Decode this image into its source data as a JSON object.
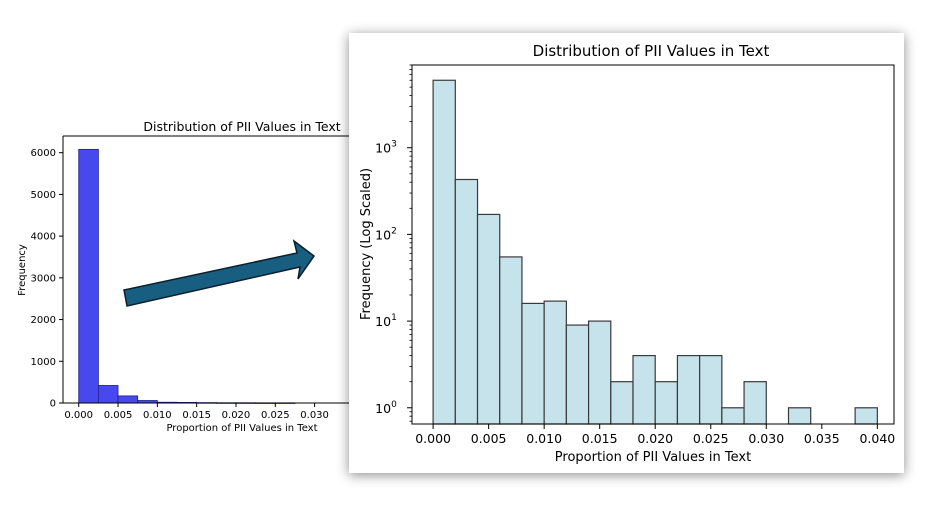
{
  "colors": {
    "left_bar_fill": "#4848f0",
    "left_bar_edge": "#1f1f8a",
    "right_bar_fill": "#c6e3ec",
    "right_bar_edge": "#3a3a3a",
    "arrow_fill": "#175e80",
    "arrow_edge": "#0b1f2c"
  },
  "arrow_icon": "arrow-right-icon",
  "chart_data": [
    {
      "type": "bar",
      "title": "Distribution of PII Values in Text",
      "xlabel": "Proportion of PII Values in Text",
      "ylabel": "Frequency",
      "y_scale": "linear",
      "ylim": [
        0,
        6400
      ],
      "xlim": [
        -0.002,
        0.0345
      ],
      "grid": false,
      "x_ticks": [
        0.0,
        0.005,
        0.01,
        0.015,
        0.02,
        0.025,
        0.03
      ],
      "x_tick_labels": [
        "0.000",
        "0.005",
        "0.010",
        "0.015",
        "0.020",
        "0.025",
        "0.030"
      ],
      "y_ticks": [
        0,
        1000,
        2000,
        3000,
        4000,
        5000,
        6000
      ],
      "y_tick_labels": [
        "0",
        "1000",
        "2000",
        "3000",
        "4000",
        "5000",
        "6000"
      ],
      "bin_width": 0.0025,
      "bin_starts": [
        0.0,
        0.0025,
        0.005,
        0.0075,
        0.01,
        0.0125,
        0.015,
        0.0175,
        0.02,
        0.0225,
        0.025
      ],
      "values": [
        6080,
        420,
        170,
        60,
        18,
        14,
        9,
        6,
        5,
        4,
        4
      ]
    },
    {
      "type": "bar",
      "title": "Distribution of PII Values in Text",
      "xlabel": "Proportion of PII Values in Text",
      "ylabel": "Frequency (Log Scaled)",
      "y_scale": "log",
      "ylim": [
        0.65,
        9000
      ],
      "xlim": [
        -0.0019,
        0.0415
      ],
      "grid": false,
      "x_ticks": [
        0.0,
        0.005,
        0.01,
        0.015,
        0.02,
        0.025,
        0.03,
        0.035,
        0.04
      ],
      "x_tick_labels": [
        "0.000",
        "0.005",
        "0.010",
        "0.015",
        "0.020",
        "0.025",
        "0.030",
        "0.035",
        "0.040"
      ],
      "y_ticks": [
        1,
        10,
        100,
        1000
      ],
      "y_tick_labels": [
        "10^0",
        "10^1",
        "10^2",
        "10^3"
      ],
      "bin_width": 0.002,
      "bin_starts": [
        0.0,
        0.002,
        0.004,
        0.006,
        0.008,
        0.01,
        0.012,
        0.014,
        0.016,
        0.018,
        0.02,
        0.022,
        0.024,
        0.026,
        0.028,
        0.032,
        0.038
      ],
      "values": [
        6000,
        430,
        170,
        55,
        16,
        17,
        9,
        10,
        2,
        4,
        2,
        4,
        4,
        1,
        2,
        1,
        1
      ]
    }
  ]
}
